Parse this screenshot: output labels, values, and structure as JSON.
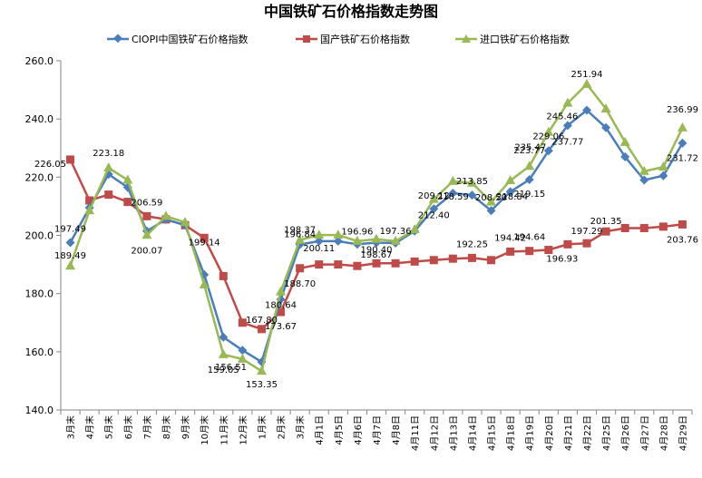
{
  "chart_data": {
    "type": "line",
    "title": "中国铁矿石价格指数走势图",
    "ylim": [
      140,
      260
    ],
    "yticks": [
      "140.0",
      "160.0",
      "180.0",
      "200.0",
      "220.0",
      "240.0",
      "260.0"
    ],
    "grid": false,
    "legend_position": "top",
    "categories": [
      "3月末",
      "4月末",
      "5月末",
      "6月末",
      "7月末",
      "8月末",
      "9月末",
      "10月末",
      "11月末",
      "12月末",
      "1月末",
      "2月末",
      "3月末",
      "4月1日",
      "4月5日",
      "4月6日",
      "4月7日",
      "4月8日",
      "4月11日",
      "4月12日",
      "4月13日",
      "4月14日",
      "4月15日",
      "4月18日",
      "4月19日",
      "4月20日",
      "4月21日",
      "4月22日",
      "4月25日",
      "4月26日",
      "4月27日",
      "4月28日",
      "4月29日"
    ],
    "series": [
      {
        "name": "CIOPI中国铁矿石价格指数",
        "color": "#4a7ebb",
        "marker": "diamond",
        "values": [
          197.49,
          209.5,
          221.0,
          216.5,
          201.5,
          205.5,
          203.5,
          186.5,
          165.0,
          160.5,
          156.51,
          178.0,
          196.84,
          198.0,
          198.0,
          196.96,
          197.5,
          197.36,
          201.5,
          209.12,
          214.5,
          213.85,
          208.5,
          215.0,
          219.15,
          229.06,
          237.77,
          243.0,
          237.0,
          227.0,
          219.0,
          220.5,
          231.72
        ]
      },
      {
        "name": "国产铁矿石价格指数",
        "color": "#be4b48",
        "marker": "square",
        "values": [
          226.05,
          212.0,
          214.0,
          211.5,
          206.59,
          205.5,
          203.5,
          199.14,
          186.0,
          170.0,
          167.8,
          173.67,
          188.7,
          190.0,
          190.0,
          189.5,
          190.4,
          190.4,
          191.0,
          191.5,
          192.0,
          192.25,
          191.5,
          194.42,
          194.64,
          195.0,
          196.93,
          197.29,
          201.35,
          202.5,
          202.5,
          203.0,
          203.76
        ]
      },
      {
        "name": "进口铁矿石价格指数",
        "color": "#98b954",
        "marker": "triangle",
        "values": [
          189.49,
          208.5,
          223.18,
          219.0,
          200.07,
          206.59,
          204.5,
          183.0,
          159.05,
          157.5,
          153.35,
          180.64,
          198.37,
          200.11,
          200.11,
          198.0,
          198.67,
          198.0,
          202.0,
          212.4,
          218.59,
          218.0,
          211.5,
          218.84,
          223.77,
          235.47,
          245.46,
          251.94,
          243.5,
          232.0,
          222.0,
          223.5,
          236.99
        ]
      }
    ],
    "data_labels": [
      {
        "text": "197.49",
        "series": 0,
        "index": 0
      },
      {
        "text": "189.49",
        "series": 2,
        "index": 0
      },
      {
        "text": "226.05",
        "series": 1,
        "index": 0
      },
      {
        "text": "223.18",
        "series": 2,
        "index": 2
      },
      {
        "text": "200.07",
        "series": 2,
        "index": 4
      },
      {
        "text": "206.59",
        "series": 1,
        "index": 4
      },
      {
        "text": "199.14",
        "series": 1,
        "index": 7
      },
      {
        "text": "159.05",
        "series": 2,
        "index": 8
      },
      {
        "text": "167.80",
        "series": 1,
        "index": 10
      },
      {
        "text": "153.35",
        "series": 2,
        "index": 10
      },
      {
        "text": "180.64",
        "series": 2,
        "index": 11
      },
      {
        "text": "156.51",
        "series": 0,
        "index": 10
      },
      {
        "text": "173.67",
        "series": 1,
        "index": 11
      },
      {
        "text": "198.37",
        "series": 2,
        "index": 12
      },
      {
        "text": "196.84",
        "series": 0,
        "index": 12
      },
      {
        "text": "188.70",
        "series": 1,
        "index": 12
      },
      {
        "text": "200.11",
        "series": 2,
        "index": 13
      },
      {
        "text": "196.96",
        "series": 0,
        "index": 15
      },
      {
        "text": "190.40",
        "series": 1,
        "index": 16
      },
      {
        "text": "198.67",
        "series": 2,
        "index": 16
      },
      {
        "text": "197.36",
        "series": 0,
        "index": 17
      },
      {
        "text": "212.40",
        "series": 2,
        "index": 19
      },
      {
        "text": "209.12",
        "series": 0,
        "index": 19
      },
      {
        "text": "218.59",
        "series": 2,
        "index": 20
      },
      {
        "text": "213.85",
        "series": 0,
        "index": 21
      },
      {
        "text": "192.25",
        "series": 1,
        "index": 21
      },
      {
        "text": "218.84",
        "series": 2,
        "index": 23
      },
      {
        "text": "208.50",
        "series": 0,
        "index": 22
      },
      {
        "text": "194.42",
        "series": 1,
        "index": 23
      },
      {
        "text": "235.47",
        "series": 2,
        "index": 25
      },
      {
        "text": "223.77",
        "series": 2,
        "index": 24
      },
      {
        "text": "219.15",
        "series": 0,
        "index": 24
      },
      {
        "text": "194.64",
        "series": 1,
        "index": 24
      },
      {
        "text": "245.46",
        "series": 2,
        "index": 26
      },
      {
        "text": "229.06",
        "series": 0,
        "index": 25
      },
      {
        "text": "196.93",
        "series": 1,
        "index": 26
      },
      {
        "text": "251.94",
        "series": 2,
        "index": 27
      },
      {
        "text": "237.77",
        "series": 0,
        "index": 26
      },
      {
        "text": "197.29",
        "series": 1,
        "index": 27
      },
      {
        "text": "201.35",
        "series": 1,
        "index": 28
      },
      {
        "text": "236.99",
        "series": 2,
        "index": 32
      },
      {
        "text": "231.72",
        "series": 0,
        "index": 32
      },
      {
        "text": "203.76",
        "series": 1,
        "index": 32
      }
    ]
  }
}
